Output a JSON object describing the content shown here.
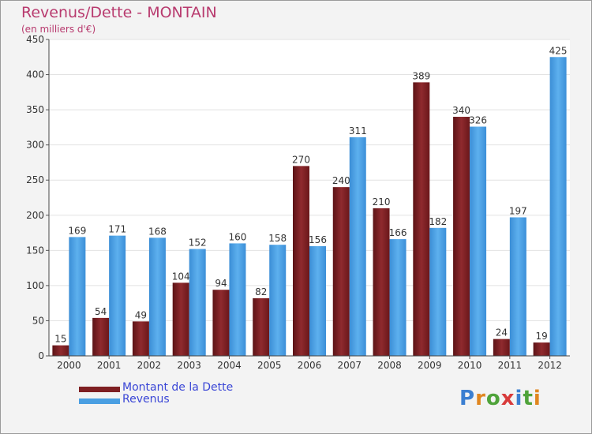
{
  "header": {
    "title": "Revenus/Dette - MONTAIN",
    "subtitle": "(en milliers d'€)"
  },
  "logo": {
    "text": "Proxiti",
    "letters": [
      "P",
      "r",
      "o",
      "x",
      "i",
      "t",
      "i"
    ],
    "colors": [
      "#3b7fd1",
      "#e0861f",
      "#4fa33a",
      "#d83a3a",
      "#3b7fd1",
      "#4fa33a",
      "#e0861f"
    ]
  },
  "chart_data": {
    "type": "bar",
    "title": "Revenus/Dette - MONTAIN",
    "subtitle": "(en milliers d'€)",
    "categories": [
      "2000",
      "2001",
      "2002",
      "2003",
      "2004",
      "2005",
      "2006",
      "2007",
      "2008",
      "2009",
      "2010",
      "2011",
      "2012"
    ],
    "series": [
      {
        "name": "Montant de la Dette",
        "color": "#7e1f22",
        "values": [
          15,
          54,
          49,
          104,
          94,
          82,
          270,
          240,
          210,
          389,
          340,
          24,
          19
        ]
      },
      {
        "name": "Revenus",
        "color": "#4a9fe2",
        "values": [
          169,
          171,
          168,
          152,
          160,
          158,
          156,
          311,
          166,
          182,
          326,
          197,
          425
        ]
      }
    ],
    "ylim": [
      0,
      450
    ],
    "yticks": [
      "0",
      "50",
      "100",
      "150",
      "200",
      "250",
      "300",
      "350",
      "400",
      "450"
    ],
    "grid": true,
    "legend": "bottom-left"
  }
}
